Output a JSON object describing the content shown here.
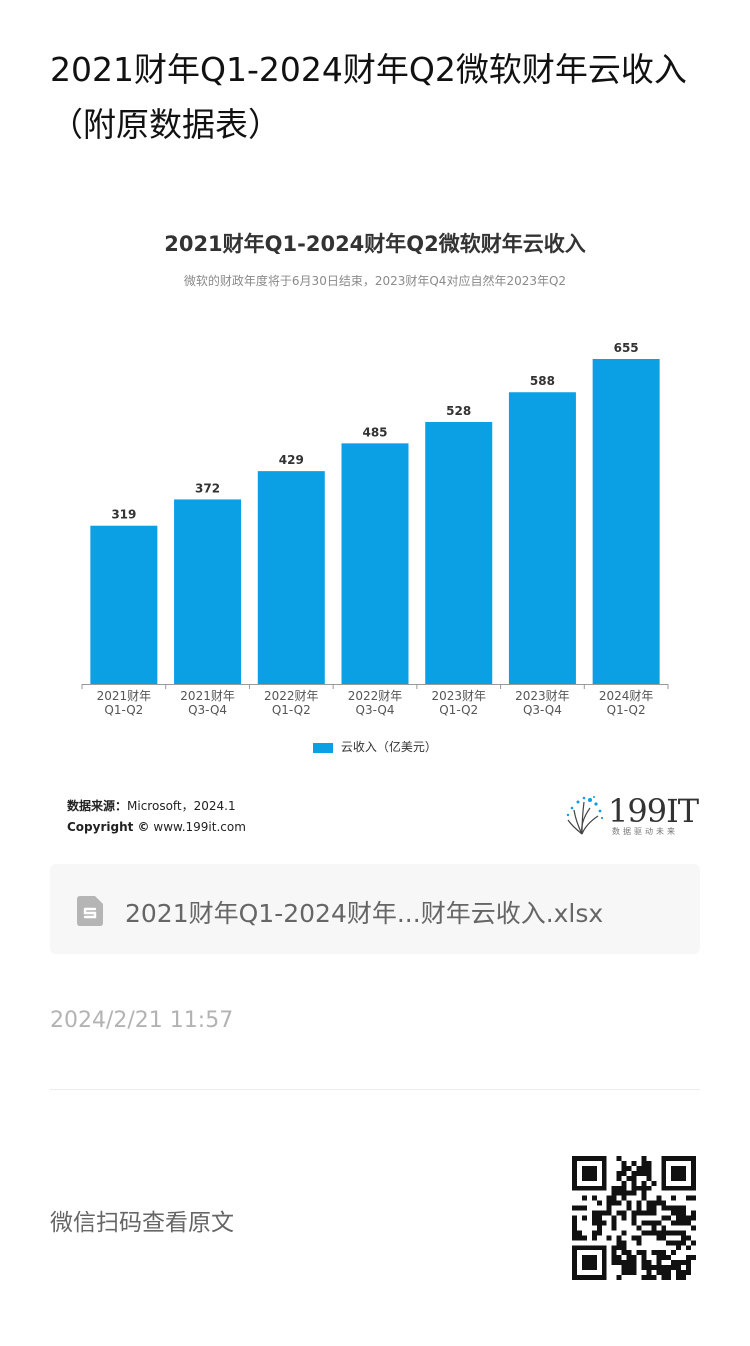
{
  "article": {
    "title": "2021财年Q1-2024财年Q2微软财年云收入（附原数据表）"
  },
  "chart_data": {
    "type": "bar",
    "title": "2021财年Q1-2024财年Q2微软财年云收入",
    "subtitle": "微软的财政年度将于6月30日结束，2023财年Q4对应自然年2023年Q2",
    "categories": [
      [
        "2021财年",
        "Q1-Q2"
      ],
      [
        "2021财年",
        "Q3-Q4"
      ],
      [
        "2022财年",
        "Q1-Q2"
      ],
      [
        "2022财年",
        "Q3-Q4"
      ],
      [
        "2023财年",
        "Q1-Q2"
      ],
      [
        "2023财年",
        "Q3-Q4"
      ],
      [
        "2024财年",
        "Q1-Q2"
      ]
    ],
    "series": [
      {
        "name": "云收入（亿美元）",
        "values": [
          319,
          372,
          429,
          485,
          528,
          588,
          655
        ],
        "color": "#0aa0e3"
      }
    ],
    "ylim": [
      0,
      655
    ],
    "grid": false,
    "legend": "bottom"
  },
  "source": {
    "label": "数据来源：",
    "value": "Microsoft，2024.1",
    "copyright_label": "Copyright ©",
    "copyright_value": "www.199it.com"
  },
  "brand": {
    "name": "199IT",
    "tagline": "数据驱动未来"
  },
  "attachment": {
    "file_name": "2021财年Q1-2024财年...财年云收入.xlsx",
    "icon": "spreadsheet-file-icon"
  },
  "timestamp": "2024/2/21 11:57",
  "footer": {
    "qr_caption": "微信扫码查看原文",
    "qr_icon": "qr-code-icon"
  }
}
